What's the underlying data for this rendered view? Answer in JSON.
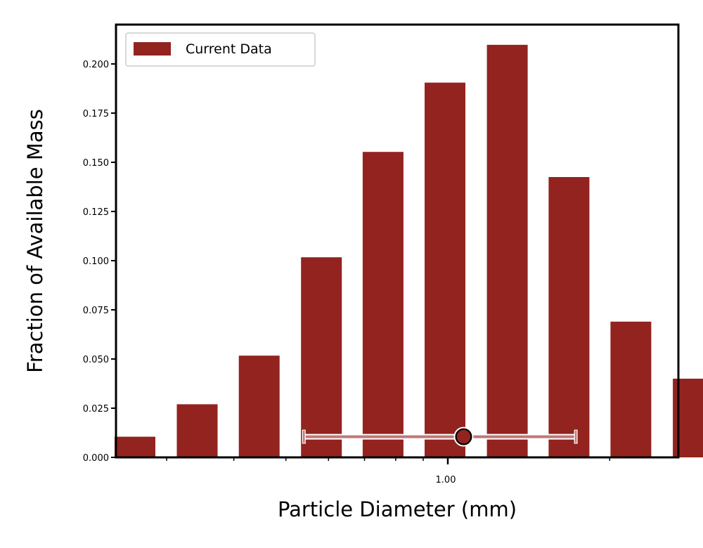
{
  "chart_data": {
    "type": "bar",
    "xlabel": "Particle Diameter (mm)",
    "ylabel": "Fraction of Available Mass",
    "x_scale": "log",
    "bar_centers_mm": [
      0.262,
      0.342,
      0.446,
      0.582,
      0.758,
      0.988,
      1.29,
      1.68,
      2.19,
      2.86
    ],
    "values": [
      0.0105,
      0.027,
      0.0517,
      0.1017,
      0.1553,
      0.1905,
      0.2097,
      0.1425,
      0.069,
      0.04
    ],
    "ylim": [
      0.0,
      0.22
    ],
    "yticks": [
      0.0,
      0.025,
      0.05,
      0.075,
      0.1,
      0.125,
      0.15,
      0.175,
      0.2
    ],
    "ytick_labels": [
      "0.000",
      "0.025",
      "0.050",
      "0.075",
      "0.100",
      "0.125",
      "0.150",
      "0.175",
      "0.200"
    ],
    "xticks_major": [
      1.0
    ],
    "xtick_labels": [
      "1.00"
    ],
    "xticks_minor": [
      0.3,
      0.4,
      0.5,
      0.6,
      0.7,
      0.8,
      0.9,
      2.0
    ],
    "legend": {
      "position": "top-left",
      "entries": [
        "Current Data"
      ]
    },
    "grid": false,
    "marker": {
      "x": 1.07,
      "y": 0.0105,
      "xerr_low": 0.54,
      "xerr_high": 1.73
    },
    "colors": {
      "bar": "#92231f",
      "errorbar": "#c07878",
      "marker_face": "#92231f",
      "marker_edge": "#ffffff"
    }
  }
}
